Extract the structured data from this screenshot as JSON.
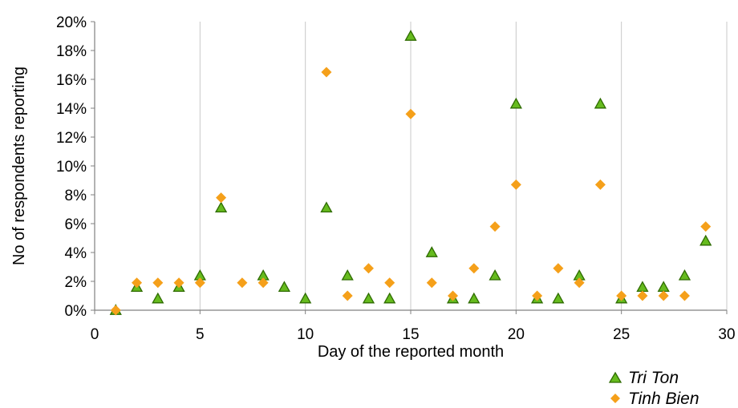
{
  "chart_data": {
    "type": "scatter",
    "xlabel": "Day of the reported month",
    "ylabel": "No of respondents reporting",
    "xlim": [
      0,
      30
    ],
    "ylim": [
      0,
      20
    ],
    "x_ticks": [
      "0",
      "5",
      "10",
      "15",
      "20",
      "25",
      "30"
    ],
    "y_ticks": [
      "0%",
      "2%",
      "4%",
      "6%",
      "8%",
      "10%",
      "12%",
      "14%",
      "16%",
      "18%",
      "20%"
    ],
    "grid": "vertical",
    "legend_position": "bottom-right",
    "series": [
      {
        "name": "Tri Ton",
        "marker": "triangle",
        "color": "#66bb1e",
        "edge_color": "#2e6b00",
        "points": [
          [
            1,
            0
          ],
          [
            2,
            1.6
          ],
          [
            3,
            0.8
          ],
          [
            4,
            1.6
          ],
          [
            5,
            2.4
          ],
          [
            6,
            7.1
          ],
          [
            8,
            2.4
          ],
          [
            9,
            1.6
          ],
          [
            10,
            0.8
          ],
          [
            11,
            7.1
          ],
          [
            12,
            2.4
          ],
          [
            13,
            0.8
          ],
          [
            14,
            0.8
          ],
          [
            15,
            19.0
          ],
          [
            16,
            4.0
          ],
          [
            17,
            0.8
          ],
          [
            18,
            0.8
          ],
          [
            19,
            2.4
          ],
          [
            20,
            14.3
          ],
          [
            21,
            0.8
          ],
          [
            22,
            0.8
          ],
          [
            23,
            2.4
          ],
          [
            24,
            14.3
          ],
          [
            25,
            0.8
          ],
          [
            26,
            1.6
          ],
          [
            27,
            1.6
          ],
          [
            28,
            2.4
          ],
          [
            29,
            4.8
          ]
        ]
      },
      {
        "name": "Tinh Bien",
        "marker": "diamond",
        "color": "#f5a01a",
        "points": [
          [
            1,
            0
          ],
          [
            2,
            1.9
          ],
          [
            3,
            1.9
          ],
          [
            4,
            1.9
          ],
          [
            5,
            1.9
          ],
          [
            6,
            7.8
          ],
          [
            7,
            1.9
          ],
          [
            8,
            1.9
          ],
          [
            11,
            16.5
          ],
          [
            12,
            1.0
          ],
          [
            13,
            2.9
          ],
          [
            14,
            1.9
          ],
          [
            15,
            13.6
          ],
          [
            16,
            1.9
          ],
          [
            17,
            1.0
          ],
          [
            18,
            2.9
          ],
          [
            19,
            5.8
          ],
          [
            20,
            8.7
          ],
          [
            21,
            1.0
          ],
          [
            22,
            2.9
          ],
          [
            23,
            1.9
          ],
          [
            24,
            8.7
          ],
          [
            25,
            1.0
          ],
          [
            26,
            1.0
          ],
          [
            27,
            1.0
          ],
          [
            28,
            1.0
          ],
          [
            29,
            5.8
          ]
        ]
      }
    ]
  }
}
